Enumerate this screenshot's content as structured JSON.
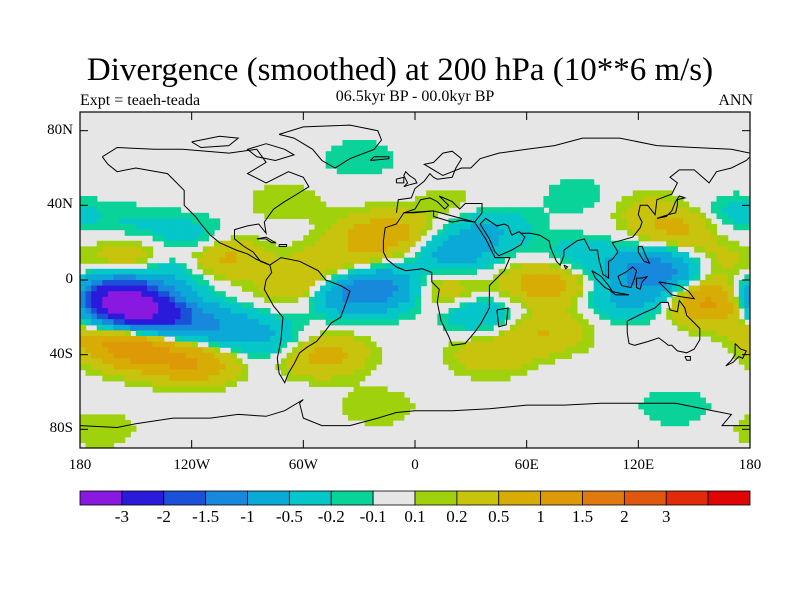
{
  "chart_data": {
    "type": "heatmap",
    "title": "Divergence (smoothed) at 200 hPa (10**6 m/s)",
    "subtitle_left": "Expt = teaeh-teada",
    "subtitle_center": "06.5kyr BP - 00.0kyr BP",
    "subtitle_right": "ANN",
    "xlabel": "",
    "ylabel": "",
    "xlim": [
      -180,
      180
    ],
    "ylim": [
      -90,
      90
    ],
    "x_ticks": [
      {
        "value": -180,
        "label": "180"
      },
      {
        "value": -120,
        "label": "120W"
      },
      {
        "value": -60,
        "label": "60W"
      },
      {
        "value": 0,
        "label": "0"
      },
      {
        "value": 60,
        "label": "60E"
      },
      {
        "value": 120,
        "label": "120E"
      },
      {
        "value": 180,
        "label": "180"
      }
    ],
    "y_ticks": [
      {
        "value": 80,
        "label": "80N"
      },
      {
        "value": 40,
        "label": "40N"
      },
      {
        "value": 0,
        "label": "0"
      },
      {
        "value": -40,
        "label": "40S"
      },
      {
        "value": -80,
        "label": "80S"
      }
    ],
    "background_color": "#e6e6e6",
    "colorbar": {
      "colors": [
        "#8a19e0",
        "#2a1bdc",
        "#1a51d8",
        "#1888dc",
        "#0aa9d6",
        "#05c6c9",
        "#0ad39a",
        "#e6e6e6",
        "#9fd20c",
        "#c8c30c",
        "#d7ad05",
        "#de9907",
        "#e07910",
        "#e0570e",
        "#e02a0a",
        "#e00505"
      ],
      "labels": [
        "-3",
        "-2",
        "-1.5",
        "-1",
        "-0.5",
        "-0.2",
        "-0.1",
        "0.1",
        "0.2",
        "0.5",
        "1",
        "1.5",
        "2",
        "3"
      ]
    },
    "fields": [
      {
        "lon": -160,
        "lat": -10,
        "value": -3.0
      },
      {
        "lon": -148,
        "lat": -18,
        "value": -2.2
      },
      {
        "lon": -125,
        "lat": -22,
        "value": -1.0
      },
      {
        "lon": -100,
        "lat": -27,
        "value": -0.6
      },
      {
        "lon": -75,
        "lat": -32,
        "value": -0.4
      },
      {
        "lon": -150,
        "lat": -36,
        "value": 1.3
      },
      {
        "lon": -120,
        "lat": -44,
        "value": 1.0
      },
      {
        "lon": -165,
        "lat": -28,
        "value": 0.6
      },
      {
        "lon": -130,
        "lat": 5,
        "value": -0.5
      },
      {
        "lon": -150,
        "lat": 12,
        "value": 0.5
      },
      {
        "lon": -120,
        "lat": 22,
        "value": -0.4
      },
      {
        "lon": -150,
        "lat": 30,
        "value": -0.2
      },
      {
        "lon": -105,
        "lat": 12,
        "value": 0.7
      },
      {
        "lon": -60,
        "lat": -3,
        "value": 0.6
      },
      {
        "lon": -35,
        "lat": -7,
        "value": -1.2
      },
      {
        "lon": -10,
        "lat": -4,
        "value": -1.0
      },
      {
        "lon": -40,
        "lat": 10,
        "value": 0.4
      },
      {
        "lon": -20,
        "lat": 25,
        "value": 0.6
      },
      {
        "lon": -5,
        "lat": 22,
        "value": 0.3
      },
      {
        "lon": 10,
        "lat": -5,
        "value": 0.7
      },
      {
        "lon": 20,
        "lat": 15,
        "value": -0.8
      },
      {
        "lon": 40,
        "lat": 28,
        "value": -0.5
      },
      {
        "lon": 35,
        "lat": -18,
        "value": -0.5
      },
      {
        "lon": 70,
        "lat": -2,
        "value": 0.8
      },
      {
        "lon": 70,
        "lat": -28,
        "value": 0.5
      },
      {
        "lon": 90,
        "lat": 12,
        "value": -0.4
      },
      {
        "lon": 130,
        "lat": 5,
        "value": -1.4
      },
      {
        "lon": 115,
        "lat": -10,
        "value": -0.6
      },
      {
        "lon": 160,
        "lat": -12,
        "value": 1.2
      },
      {
        "lon": 160,
        "lat": 10,
        "value": 0.3
      },
      {
        "lon": 140,
        "lat": 28,
        "value": 0.6
      },
      {
        "lon": 170,
        "lat": 35,
        "value": -0.3
      },
      {
        "lon": 90,
        "lat": 45,
        "value": -0.2
      },
      {
        "lon": 120,
        "lat": 40,
        "value": 0.2
      },
      {
        "lon": -50,
        "lat": -40,
        "value": 0.7
      },
      {
        "lon": 40,
        "lat": -40,
        "value": 0.4
      },
      {
        "lon": -20,
        "lat": -68,
        "value": 0.2
      },
      {
        "lon": 140,
        "lat": -68,
        "value": -0.2
      },
      {
        "lon": -170,
        "lat": -80,
        "value": 0.2
      },
      {
        "lon": -70,
        "lat": 42,
        "value": 0.2
      },
      {
        "lon": 20,
        "lat": 40,
        "value": 0.2
      },
      {
        "lon": -30,
        "lat": 65,
        "value": -0.2
      }
    ]
  }
}
